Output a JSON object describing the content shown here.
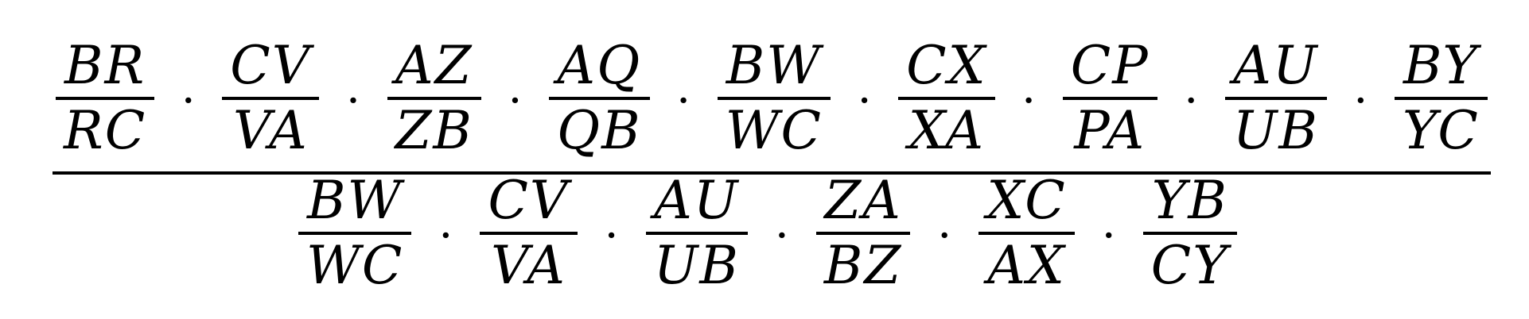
{
  "formula": {
    "dot": "·",
    "numerator": [
      {
        "num": "BR",
        "den": "RC"
      },
      {
        "num": "CV",
        "den": "VA"
      },
      {
        "num": "AZ",
        "den": "ZB"
      },
      {
        "num": "AQ",
        "den": "QB"
      },
      {
        "num": "BW",
        "den": "WC"
      },
      {
        "num": "CX",
        "den": "XA"
      },
      {
        "num": "CP",
        "den": "PA"
      },
      {
        "num": "AU",
        "den": "UB"
      },
      {
        "num": "BY",
        "den": "YC"
      }
    ],
    "denominator": [
      {
        "num": "BW",
        "den": "WC"
      },
      {
        "num": "CV",
        "den": "VA"
      },
      {
        "num": "AU",
        "den": "UB"
      },
      {
        "num": "ZA",
        "den": "BZ"
      },
      {
        "num": "XC",
        "den": "AX"
      },
      {
        "num": "YB",
        "den": "CY"
      }
    ]
  }
}
